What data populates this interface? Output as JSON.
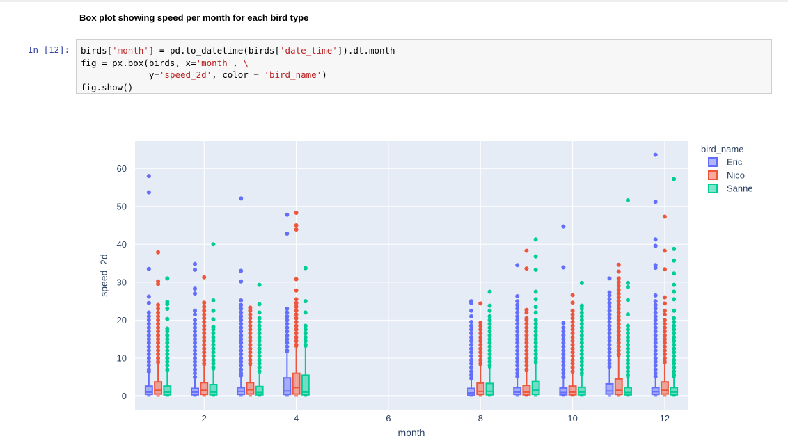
{
  "markdown": {
    "heading": "Box plot showing speed per month for each bird type"
  },
  "cell": {
    "prompt": "In [12]:",
    "code_lines": [
      [
        "birds[",
        {
          "s": "'month'"
        },
        "] = pd.to_datetime(birds[",
        {
          "s": "'date_time'"
        },
        "]).dt.month"
      ],
      [
        "fig = px.box(birds, x=",
        {
          "s": "'month'"
        },
        ", ",
        {
          "s": "\\"
        }
      ],
      [
        "             y=",
        {
          "s": "'speed_2d'"
        },
        ", color = ",
        {
          "s": "'bird_name'"
        },
        ")"
      ],
      [
        "fig.show()"
      ]
    ]
  },
  "chart_data": {
    "type": "box",
    "xlabel": "month",
    "ylabel": "speed_2d",
    "xlim": [
      0.5,
      12.5
    ],
    "ylim": [
      -3.6,
      67.2
    ],
    "xticks": [
      2,
      4,
      6,
      8,
      10,
      12
    ],
    "yticks": [
      0,
      10,
      20,
      30,
      40,
      50,
      60
    ],
    "grid": true,
    "legend_title": "bird_name",
    "legend_position": "right",
    "colors": {
      "Eric": "#636efa",
      "Nico": "#ef553b",
      "Sanne": "#00cc96"
    },
    "series": [
      {
        "name": "Eric",
        "boxes": [
          {
            "month": 1,
            "q1": 0.4,
            "median": 1.0,
            "q3": 2.6,
            "whisker_hi": 6.2,
            "outliers": [
              6.4,
              7,
              8,
              9,
              10,
              11,
              12,
              13,
              14,
              15,
              16,
              17,
              18,
              19,
              20,
              21,
              22,
              24.5,
              26.2,
              33.5,
              53.7,
              58
            ]
          },
          {
            "month": 2,
            "q1": 0.3,
            "median": 1.0,
            "q3": 2.0,
            "whisker_hi": 4.8,
            "outliers": [
              5,
              6,
              7,
              8,
              9,
              10,
              11,
              12,
              13,
              14,
              15,
              16,
              17,
              18,
              19,
              20,
              21.5,
              22.5,
              27,
              28.3,
              33.3,
              34.8
            ]
          },
          {
            "month": 3,
            "q1": 0.4,
            "median": 1.2,
            "q3": 2.2,
            "whisker_hi": 5.2,
            "outliers": [
              5.4,
              6,
              7,
              8,
              9,
              10,
              11,
              12,
              13,
              14,
              15,
              16,
              17,
              18,
              19,
              20,
              21,
              22,
              23,
              24,
              25.2,
              30.2,
              33,
              52.1
            ]
          },
          {
            "month": 4,
            "q1": 0.4,
            "median": 1.3,
            "q3": 4.8,
            "whisker_hi": 11.5,
            "outliers": [
              12,
              13,
              14,
              15,
              16,
              17,
              18,
              19,
              20,
              21,
              22,
              23,
              42.8,
              47.8
            ]
          },
          {
            "month": 8,
            "q1": 0.2,
            "median": 0.8,
            "q3": 2.0,
            "whisker_hi": 4.5,
            "outliers": [
              4.7,
              5.5,
              6.5,
              7.5,
              8.5,
              9.5,
              10.5,
              11.5,
              12.5,
              13.5,
              14.5,
              15.5,
              16.5,
              17.5,
              18.5,
              19.5,
              21,
              22.5,
              24.5,
              25
            ]
          },
          {
            "month": 9,
            "q1": 0.4,
            "median": 1.0,
            "q3": 2.2,
            "whisker_hi": 5.0,
            "outliers": [
              5.2,
              6,
              7,
              8,
              9,
              10,
              11,
              12,
              13,
              14,
              15,
              16,
              17,
              18,
              19,
              20,
              21,
              22,
              23,
              24,
              25,
              26.3,
              34.5
            ]
          },
          {
            "month": 10,
            "q1": 0.3,
            "median": 0.9,
            "q3": 2.1,
            "whisker_hi": 4.8,
            "outliers": [
              5,
              6,
              7,
              8,
              9,
              10,
              11,
              12,
              13,
              14,
              15,
              16,
              17,
              18,
              19.2,
              33.9,
              44.7
            ]
          },
          {
            "month": 11,
            "q1": 0.5,
            "median": 1.3,
            "q3": 3.2,
            "whisker_hi": 7.5,
            "outliers": [
              7.7,
              8.5,
              9.5,
              10.5,
              11.5,
              12.5,
              13.5,
              14.5,
              15.5,
              16.5,
              17.5,
              18.5,
              19.5,
              20.5,
              21.5,
              22.5,
              23.5,
              24.5,
              25.5,
              26.5,
              27.3,
              31
            ]
          },
          {
            "month": 12,
            "q1": 0.4,
            "median": 1.1,
            "q3": 2.2,
            "whisker_hi": 5.0,
            "outliers": [
              5.2,
              6,
              7,
              8,
              9,
              10,
              11,
              12,
              13,
              14,
              15,
              16,
              17,
              18,
              19,
              20,
              21,
              22,
              23,
              24,
              25,
              26.5,
              33.8,
              34.5,
              39.6,
              41.3,
              51.2,
              63.6
            ]
          }
        ]
      },
      {
        "name": "Nico",
        "boxes": [
          {
            "month": 1,
            "q1": 0.5,
            "median": 1.5,
            "q3": 3.7,
            "whisker_hi": 8.5,
            "outliers": [
              9,
              10,
              11,
              12,
              13,
              14,
              15,
              16,
              17,
              18,
              19,
              20,
              21,
              22,
              23,
              24,
              29.5,
              30.2,
              37.9
            ]
          },
          {
            "month": 2,
            "q1": 0.4,
            "median": 1.5,
            "q3": 3.5,
            "whisker_hi": 8.0,
            "outliers": [
              8.5,
              9.5,
              10.5,
              11.5,
              12.5,
              13.5,
              14.5,
              15.5,
              16.5,
              17.5,
              18.5,
              19.5,
              20.5,
              21.5,
              22.5,
              23.5,
              24.6,
              31.3
            ]
          },
          {
            "month": 3,
            "q1": 0.5,
            "median": 1.6,
            "q3": 3.5,
            "whisker_hi": 8.0,
            "outliers": [
              8.5,
              9.5,
              10.5,
              11.5,
              12.5,
              13.5,
              14.5,
              15.5,
              16.5,
              17.5,
              18.5,
              19.5,
              20.5,
              21.5,
              22.5,
              23.3
            ]
          },
          {
            "month": 4,
            "q1": 0.5,
            "median": 2.2,
            "q3": 6.0,
            "whisker_hi": 13.0,
            "outliers": [
              13.5,
              14.5,
              15.5,
              16.5,
              17.5,
              18.5,
              19.5,
              20.5,
              21.5,
              22.5,
              23.5,
              24.5,
              25.5,
              27.8,
              30.8,
              43.9,
              45,
              48.3
            ]
          },
          {
            "month": 8,
            "q1": 0.4,
            "median": 1.2,
            "q3": 3.4,
            "whisker_hi": 8.0,
            "outliers": [
              8.5,
              9.5,
              10.5,
              11.5,
              12.5,
              13.5,
              14.5,
              15.5,
              16.5,
              17.5,
              18.5,
              19.3,
              24.4
            ]
          },
          {
            "month": 9,
            "q1": 0.3,
            "median": 1.0,
            "q3": 2.8,
            "whisker_hi": 6.5,
            "outliers": [
              7,
              8,
              9,
              10,
              11,
              12,
              13,
              14,
              15,
              16,
              17,
              18,
              19,
              20,
              20.5,
              22,
              22.7,
              33.6,
              38.3
            ]
          },
          {
            "month": 10,
            "q1": 0.3,
            "median": 1.0,
            "q3": 2.6,
            "whisker_hi": 6.0,
            "outliers": [
              6.5,
              7.5,
              8.5,
              9.5,
              10.5,
              11.5,
              12.5,
              13.5,
              14.5,
              15.5,
              16.5,
              17.5,
              18.5,
              19.5,
              20.5,
              21.5,
              22.5,
              24.6,
              26.6
            ]
          },
          {
            "month": 11,
            "q1": 0.4,
            "median": 1.5,
            "q3": 4.5,
            "whisker_hi": 10.5,
            "outliers": [
              11,
              12,
              13,
              14,
              15,
              16,
              17,
              18,
              19,
              20,
              21,
              22,
              23,
              24,
              25,
              26,
              27,
              28,
              29,
              30,
              31,
              32.8,
              34.6
            ]
          },
          {
            "month": 12,
            "q1": 0.5,
            "median": 1.5,
            "q3": 3.7,
            "whisker_hi": 8.5,
            "outliers": [
              9,
              10,
              11,
              12,
              13,
              14,
              15,
              16,
              17,
              18,
              19,
              20,
              21.5,
              22.5,
              24.4,
              26,
              33.4,
              38.3,
              47.3
            ]
          }
        ]
      },
      {
        "name": "Sanne",
        "boxes": [
          {
            "month": 1,
            "q1": 0.3,
            "median": 1.0,
            "q3": 2.6,
            "whisker_hi": 6.5,
            "outliers": [
              7,
              8,
              9,
              10,
              11,
              12,
              13,
              14,
              15,
              16,
              17,
              17.8,
              20.3,
              23,
              24.2,
              24.8,
              31
            ]
          },
          {
            "month": 2,
            "q1": 0.3,
            "median": 1.0,
            "q3": 3.0,
            "whisker_hi": 7.0,
            "outliers": [
              7.5,
              8.5,
              9.5,
              10.5,
              11.5,
              12.5,
              13.5,
              14.5,
              15.5,
              16.5,
              17.5,
              18.2,
              20.2,
              22.5,
              25.2,
              40
            ]
          },
          {
            "month": 3,
            "q1": 0.3,
            "median": 0.9,
            "q3": 2.5,
            "whisker_hi": 6.0,
            "outliers": [
              6.5,
              7.5,
              8.5,
              9.5,
              10.5,
              11.5,
              12.5,
              13.5,
              14.5,
              15.5,
              16.5,
              17.5,
              18.5,
              19.5,
              20.5,
              22,
              24.2,
              29.3
            ]
          },
          {
            "month": 4,
            "q1": 0.3,
            "median": 1.0,
            "q3": 5.5,
            "whisker_hi": 13.0,
            "outliers": [
              13.5,
              14.5,
              15.5,
              16.5,
              17.5,
              18.5,
              22,
              25,
              33.7
            ]
          },
          {
            "month": 8,
            "q1": 0.3,
            "median": 1.2,
            "q3": 3.3,
            "whisker_hi": 7.5,
            "outliers": [
              8,
              9,
              10,
              11,
              12,
              13,
              14,
              15,
              16,
              17,
              18,
              19,
              20,
              21,
              22.5,
              23.8,
              27.5
            ]
          },
          {
            "month": 9,
            "q1": 0.4,
            "median": 1.5,
            "q3": 3.8,
            "whisker_hi": 8.5,
            "outliers": [
              9,
              10,
              11,
              12,
              13,
              14,
              15,
              16,
              17,
              18,
              19,
              20,
              22,
              23.5,
              25.5,
              27.5,
              33.3,
              36.8,
              41.3
            ]
          },
          {
            "month": 10,
            "q1": 0.3,
            "median": 1.0,
            "q3": 2.3,
            "whisker_hi": 5.5,
            "outliers": [
              6,
              7,
              8,
              9,
              10,
              11,
              12,
              13,
              14,
              15,
              16,
              17,
              18,
              19,
              20,
              21,
              22,
              23,
              23.8,
              29.8
            ]
          },
          {
            "month": 11,
            "q1": 0.3,
            "median": 0.9,
            "q3": 2.2,
            "whisker_hi": 5.0,
            "outliers": [
              5.5,
              6.5,
              7.5,
              8.5,
              9.5,
              10.5,
              11.5,
              12.5,
              13.5,
              14.5,
              15.5,
              16.5,
              17.5,
              18.5,
              21.5,
              25.3,
              28.7,
              29.8,
              51.6
            ]
          },
          {
            "month": 12,
            "q1": 0.3,
            "median": 1.0,
            "q3": 2.2,
            "whisker_hi": 5.0,
            "outliers": [
              5.5,
              6.5,
              7.5,
              8.5,
              9.5,
              10.5,
              11.5,
              12.5,
              13.5,
              14.5,
              15.5,
              16.5,
              17.5,
              18.5,
              19.5,
              20.5,
              22.5,
              25.5,
              27.5,
              29.3,
              32.3,
              35.7,
              38.8,
              57.2
            ]
          }
        ]
      }
    ]
  }
}
